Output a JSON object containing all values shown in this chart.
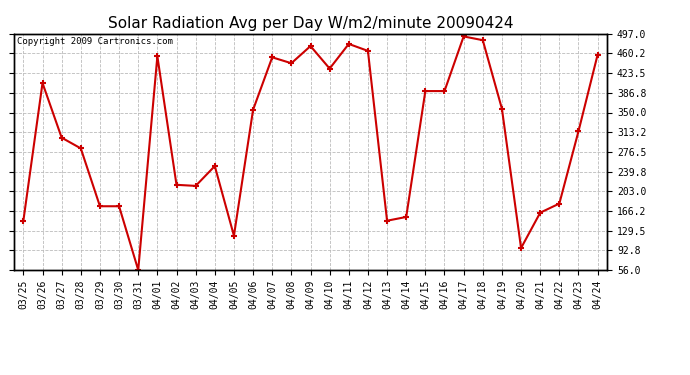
{
  "title": "Solar Radiation Avg per Day W/m2/minute 20090424",
  "copyright": "Copyright 2009 Cartronics.com",
  "dates": [
    "03/25",
    "03/26",
    "03/27",
    "03/28",
    "03/29",
    "03/30",
    "03/31",
    "04/01",
    "04/02",
    "04/03",
    "04/04",
    "04/05",
    "04/06",
    "04/07",
    "04/08",
    "04/09",
    "04/10",
    "04/11",
    "04/12",
    "04/13",
    "04/14",
    "04/15",
    "04/16",
    "04/17",
    "04/18",
    "04/19",
    "04/20",
    "04/21",
    "04/22",
    "04/23",
    "04/24"
  ],
  "values": [
    148,
    405,
    303,
    283,
    175,
    175,
    56,
    455,
    215,
    213,
    250,
    120,
    355,
    453,
    442,
    474,
    432,
    478,
    465,
    148,
    155,
    390,
    390,
    492,
    485,
    357,
    97,
    163,
    180,
    315,
    458
  ],
  "yticks": [
    56.0,
    92.8,
    129.5,
    166.2,
    203.0,
    239.8,
    276.5,
    313.2,
    350.0,
    386.8,
    423.5,
    460.2,
    497.0
  ],
  "line_color": "#cc0000",
  "marker": "+",
  "marker_size": 5,
  "marker_lw": 1.5,
  "bg_color": "#ffffff",
  "grid_color": "#bbbbbb",
  "title_fontsize": 11,
  "copyright_fontsize": 6.5,
  "tick_fontsize": 7,
  "ylim": [
    56.0,
    497.0
  ]
}
